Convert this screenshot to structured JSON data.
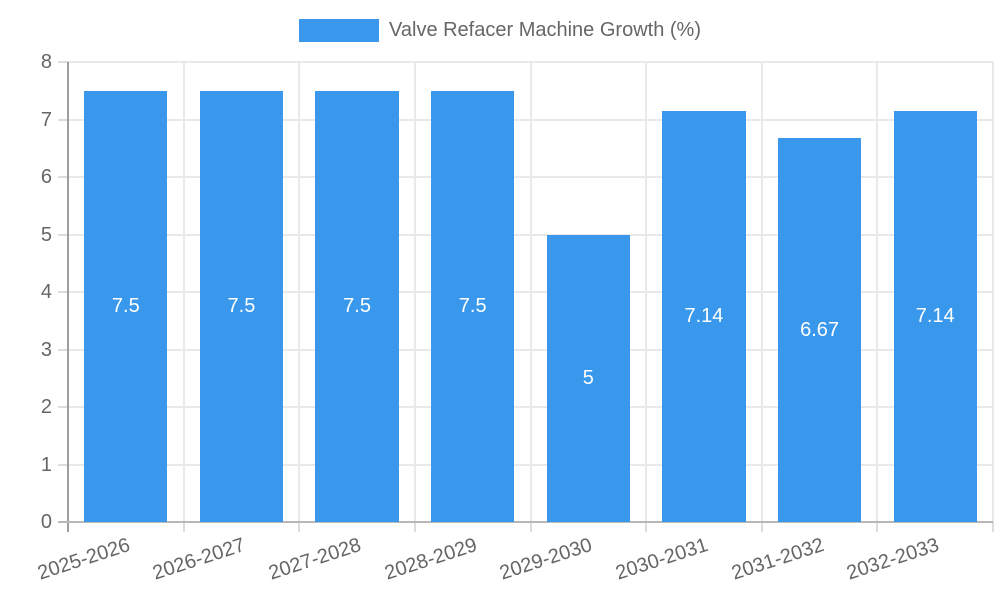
{
  "legend": {
    "label": "Valve Refacer Machine Growth (%)",
    "swatch_color": "#3998ec"
  },
  "chart_data": {
    "type": "bar",
    "title": "Valve Refacer Machine Growth (%)",
    "categories": [
      "2025-2026",
      "2026-2027",
      "2027-2028",
      "2028-2029",
      "2029-2030",
      "2030-2031",
      "2031-2032",
      "2032-2033"
    ],
    "values": [
      7.5,
      7.5,
      7.5,
      7.5,
      5,
      7.14,
      6.67,
      7.14
    ],
    "value_labels": [
      "7.5",
      "7.5",
      "7.5",
      "7.5",
      "5",
      "7.14",
      "6.67",
      "7.14"
    ],
    "xlabel": "",
    "ylabel": "",
    "ylim": [
      0,
      8
    ],
    "yticks": [
      0,
      1,
      2,
      3,
      4,
      5,
      6,
      7,
      8
    ],
    "grid": true,
    "legend_position": "top-center",
    "bar_color": "#3998ec",
    "bar_label_color": "#ffffff",
    "axis_text_color": "#666666",
    "grid_color": "#e9e9e9",
    "x_label_rotation_deg": -18
  }
}
